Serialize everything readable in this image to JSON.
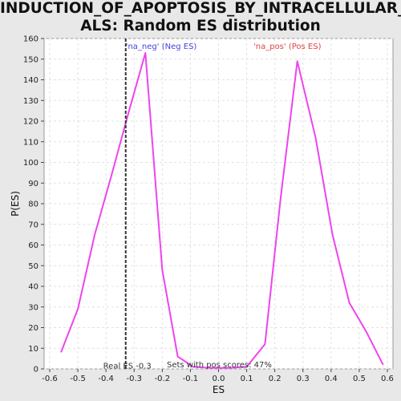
{
  "title_line1": "INDUCTION_OF_APOPTOSIS_BY_INTRACELLULAR_SIGN",
  "title_line2": "ALS: Random ES distribution",
  "chart_data": {
    "type": "line",
    "xlabel": "ES",
    "ylabel": "P(ES)",
    "xlim": [
      -0.62,
      0.62
    ],
    "ylim": [
      0,
      160
    ],
    "xticks": [
      -0.6,
      -0.5,
      -0.4,
      -0.3,
      -0.2,
      -0.1,
      0.0,
      0.1,
      0.2,
      0.3,
      0.4,
      0.5,
      0.6
    ],
    "xtick_labels": [
      "-0.6",
      "-0.5",
      "-0.4",
      "-0.3",
      "-0.2",
      "-0.1",
      "0.0",
      "0.1",
      "0.2",
      "0.3",
      "0.4",
      "0.5",
      "0.6"
    ],
    "yticks": [
      0,
      10,
      20,
      30,
      40,
      50,
      60,
      70,
      80,
      90,
      100,
      110,
      120,
      130,
      140,
      150,
      160
    ],
    "ytick_labels": [
      "0",
      "10",
      "20",
      "30",
      "40",
      "50",
      "60",
      "70",
      "80",
      "90",
      "100",
      "110",
      "120",
      "130",
      "140",
      "150",
      "160"
    ],
    "grid": true,
    "series": [
      {
        "color": "#ee44ee",
        "x": [
          -0.56,
          -0.5,
          -0.44,
          -0.38,
          -0.32,
          -0.26,
          -0.2,
          -0.145,
          -0.09,
          -0.03,
          0.04,
          0.1,
          0.165,
          0.22,
          0.28,
          0.345,
          0.405,
          0.465,
          0.525,
          0.585
        ],
        "y": [
          8,
          29,
          65,
          94,
          124,
          153,
          48,
          6,
          1,
          0.5,
          0.5,
          1,
          12,
          82,
          149,
          112,
          65,
          32,
          18,
          2
        ]
      }
    ],
    "real_es": {
      "value": -0.33,
      "label": "Real ES -0.3",
      "color": "#333333"
    },
    "annotations": {
      "neg": {
        "text": "'na_neg' (Neg ES)",
        "color": "#4444dd"
      },
      "pos": {
        "text": "'na_pos' (Pos ES)",
        "color": "#dd4444"
      },
      "sets_pos": {
        "text": "Sets with pos scores: 47%",
        "color": "#333333"
      }
    }
  }
}
